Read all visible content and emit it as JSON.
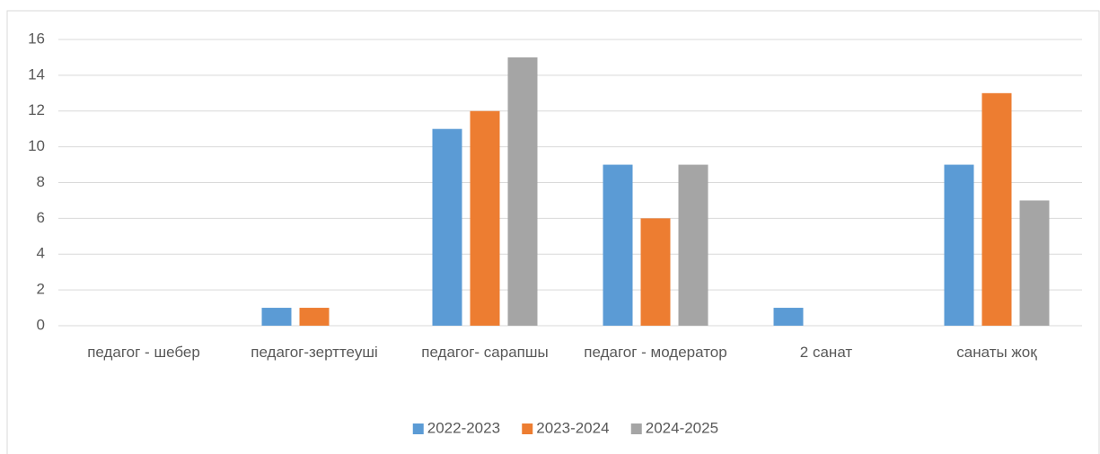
{
  "chart_data": {
    "type": "bar",
    "categories": [
      "педагог - шебер",
      "педагог-зерттеуші",
      "педагог- сарапшы",
      "педагог - модератор",
      "2 санат",
      "санаты жоқ"
    ],
    "series": [
      {
        "name": "2022-2023",
        "color": "#5b9bd5",
        "values": [
          0,
          1,
          11,
          9,
          1,
          9
        ]
      },
      {
        "name": "2023-2024",
        "color": "#ed7d31",
        "values": [
          0,
          1,
          12,
          6,
          0,
          13
        ]
      },
      {
        "name": "2024-2025",
        "color": "#a5a5a5",
        "values": [
          0,
          0,
          15,
          9,
          0,
          7
        ]
      }
    ],
    "ylim": [
      0,
      16
    ],
    "yticks": [
      0,
      2,
      4,
      6,
      8,
      10,
      12,
      14,
      16
    ],
    "grid": true,
    "legend": "bottom"
  }
}
